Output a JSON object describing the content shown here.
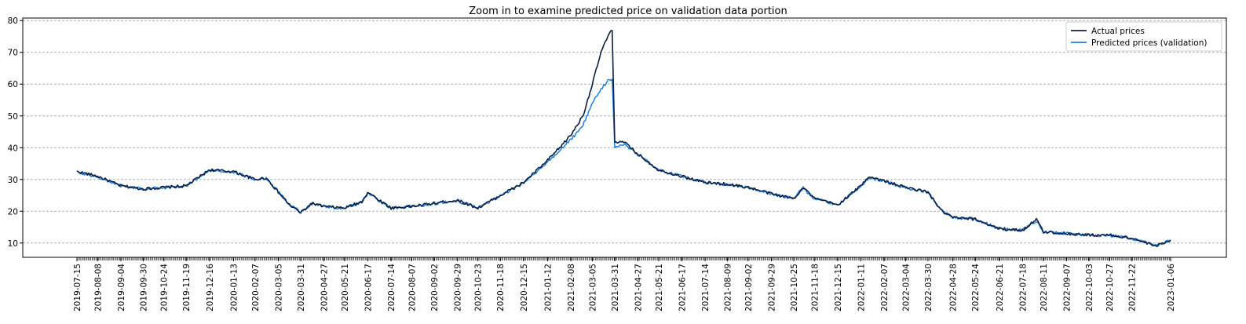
{
  "chart_data": {
    "type": "line",
    "title": "Zoom in to examine predicted price on validation data portion",
    "xlabel": "",
    "ylabel": "",
    "ylim": [
      5.5,
      80.8
    ],
    "yticks": [
      10,
      20,
      30,
      40,
      50,
      60,
      70,
      80
    ],
    "grid": "horizontal-dashed",
    "legend_placement": "top-right",
    "x_tick_labels": [
      "2019-07-15",
      "2019-08-08",
      "2019-09-04",
      "2019-09-30",
      "2019-10-24",
      "2019-11-19",
      "2019-12-16",
      "2020-01-13",
      "2020-02-07",
      "2020-03-05",
      "2020-03-31",
      "2020-04-27",
      "2020-05-21",
      "2020-06-17",
      "2020-07-14",
      "2020-08-07",
      "2020-09-02",
      "2020-09-29",
      "2020-10-23",
      "2020-11-18",
      "2020-12-15",
      "2021-01-12",
      "2021-02-08",
      "2021-03-05",
      "2021-03-31",
      "2021-04-27",
      "2021-05-21",
      "2021-06-17",
      "2021-07-14",
      "2021-08-09",
      "2021-09-02",
      "2021-09-29",
      "2021-10-25",
      "2021-11-18",
      "2021-12-15",
      "2022-01-11",
      "2022-02-07",
      "2022-03-04",
      "2022-03-30",
      "2022-04-28",
      "2022-05-24",
      "2022-06-21",
      "2022-07-18",
      "2022-08-11",
      "2022-09-07",
      "2022-10-03",
      "2022-10-27",
      "2022-11-22",
      "2023-01-06"
    ],
    "series": [
      {
        "name": "Actual prices",
        "color": "#0a1f44",
        "x": [
          "2019-07-15",
          "2019-08-08",
          "2019-09-04",
          "2019-09-30",
          "2019-10-24",
          "2019-11-19",
          "2019-12-16",
          "2020-01-13",
          "2020-02-07",
          "2020-02-20",
          "2020-03-05",
          "2020-03-18",
          "2020-03-31",
          "2020-04-13",
          "2020-04-27",
          "2020-05-21",
          "2020-06-10",
          "2020-06-17",
          "2020-07-14",
          "2020-08-07",
          "2020-09-02",
          "2020-09-29",
          "2020-10-23",
          "2020-11-18",
          "2020-12-15",
          "2021-01-12",
          "2021-01-26",
          "2021-02-08",
          "2021-02-22",
          "2021-03-05",
          "2021-03-15",
          "2021-03-23",
          "2021-03-28",
          "2021-03-31",
          "2021-04-12",
          "2021-04-27",
          "2021-05-21",
          "2021-06-17",
          "2021-07-14",
          "2021-08-09",
          "2021-09-02",
          "2021-09-29",
          "2021-10-25",
          "2021-11-05",
          "2021-11-18",
          "2021-12-15",
          "2022-01-11",
          "2022-01-20",
          "2022-02-07",
          "2022-03-04",
          "2022-03-30",
          "2022-04-15",
          "2022-04-28",
          "2022-05-24",
          "2022-06-21",
          "2022-07-18",
          "2022-08-03",
          "2022-08-11",
          "2022-09-07",
          "2022-10-03",
          "2022-10-27",
          "2022-11-22",
          "2022-12-20",
          "2023-01-06"
        ],
        "y": [
          32.5,
          31.0,
          28.0,
          27.0,
          27.5,
          28.0,
          33.0,
          32.5,
          30.0,
          30.5,
          26.0,
          22.0,
          19.5,
          22.5,
          21.5,
          21.0,
          23.0,
          26.0,
          21.0,
          21.5,
          22.5,
          23.5,
          21.0,
          25.0,
          29.0,
          36.0,
          40.0,
          44.0,
          50.0,
          60.0,
          70.0,
          75.0,
          77.0,
          42.0,
          41.5,
          38.0,
          33.0,
          31.0,
          29.0,
          28.5,
          27.5,
          25.5,
          24.0,
          27.5,
          24.0,
          22.0,
          28.0,
          31.0,
          29.5,
          27.5,
          26.0,
          20.0,
          18.0,
          17.5,
          14.5,
          14.0,
          17.5,
          13.5,
          13.0,
          12.5,
          12.5,
          11.5,
          9.0,
          11.0
        ]
      },
      {
        "name": "Predicted prices (validation)",
        "color": "#1f7fe0",
        "x": [
          "2019-07-15",
          "2019-08-08",
          "2019-09-04",
          "2019-09-30",
          "2019-10-24",
          "2019-11-19",
          "2019-12-16",
          "2020-01-13",
          "2020-02-07",
          "2020-02-20",
          "2020-03-05",
          "2020-03-18",
          "2020-03-31",
          "2020-04-13",
          "2020-04-27",
          "2020-05-21",
          "2020-06-10",
          "2020-06-17",
          "2020-07-14",
          "2020-08-07",
          "2020-09-02",
          "2020-09-29",
          "2020-10-23",
          "2020-11-18",
          "2020-12-15",
          "2021-01-12",
          "2021-01-26",
          "2021-02-08",
          "2021-02-22",
          "2021-03-05",
          "2021-03-15",
          "2021-03-23",
          "2021-03-28",
          "2021-03-31",
          "2021-04-12",
          "2021-04-27",
          "2021-05-21",
          "2021-06-17",
          "2021-07-14",
          "2021-08-09",
          "2021-09-02",
          "2021-09-29",
          "2021-10-25",
          "2021-11-05",
          "2021-11-18",
          "2021-12-15",
          "2022-01-11",
          "2022-01-20",
          "2022-02-07",
          "2022-03-04",
          "2022-03-30",
          "2022-04-15",
          "2022-04-28",
          "2022-05-24",
          "2022-06-21",
          "2022-07-18",
          "2022-08-03",
          "2022-08-11",
          "2022-09-07",
          "2022-10-03",
          "2022-10-27",
          "2022-11-22",
          "2022-12-20",
          "2023-01-06"
        ],
        "y": [
          32.3,
          30.8,
          28.0,
          27.0,
          27.4,
          28.0,
          32.8,
          32.3,
          30.0,
          30.3,
          26.2,
          22.2,
          19.8,
          22.3,
          21.5,
          21.0,
          22.8,
          25.5,
          21.0,
          21.5,
          22.4,
          23.3,
          21.0,
          24.8,
          28.8,
          35.5,
          39.0,
          42.5,
          47.0,
          54.0,
          58.5,
          61.0,
          61.5,
          40.0,
          41.0,
          37.8,
          33.0,
          31.0,
          29.0,
          28.4,
          27.4,
          25.5,
          24.0,
          27.3,
          24.0,
          22.0,
          27.8,
          30.5,
          29.4,
          27.4,
          26.0,
          20.2,
          18.0,
          17.5,
          14.5,
          14.0,
          17.0,
          13.5,
          13.0,
          12.5,
          12.4,
          11.5,
          9.2,
          10.8
        ]
      }
    ]
  }
}
